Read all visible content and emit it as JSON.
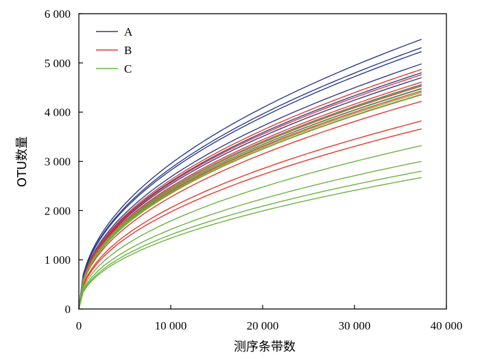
{
  "chart_data": {
    "type": "line",
    "xlabel": "测序条带数",
    "ylabel": "OTU数量",
    "xlim": [
      0,
      40000
    ],
    "ylim": [
      0,
      6000
    ],
    "x_ticks": [
      0,
      10000,
      20000,
      30000,
      40000
    ],
    "y_ticks": [
      0,
      1000,
      2000,
      3000,
      4000,
      5000,
      6000
    ],
    "x_tick_labels": [
      "0",
      "10 000",
      "20 000",
      "30 000",
      "40 000"
    ],
    "y_tick_labels": [
      "0",
      "1 000",
      "2 000",
      "3 000",
      "4 000",
      "5 000",
      "6 000"
    ],
    "legend": {
      "position": "top-left",
      "entries": [
        "A",
        "B",
        "C"
      ]
    },
    "group_colors": {
      "A": "#2b3a8c",
      "B": "#e8352a",
      "C": "#6ab23e"
    },
    "grid": false,
    "x_end": 37300,
    "series": [
      {
        "group": "A",
        "end_value": 5480
      },
      {
        "group": "A",
        "end_value": 5310
      },
      {
        "group": "A",
        "end_value": 5230
      },
      {
        "group": "A",
        "end_value": 4980
      },
      {
        "group": "A",
        "end_value": 4800
      },
      {
        "group": "A",
        "end_value": 4700
      },
      {
        "group": "A",
        "end_value": 4560
      },
      {
        "group": "A",
        "end_value": 4480
      },
      {
        "group": "B",
        "end_value": 4870
      },
      {
        "group": "B",
        "end_value": 4760
      },
      {
        "group": "B",
        "end_value": 4610
      },
      {
        "group": "B",
        "end_value": 4530
      },
      {
        "group": "B",
        "end_value": 4430
      },
      {
        "group": "B",
        "end_value": 4360
      },
      {
        "group": "B",
        "end_value": 4220
      },
      {
        "group": "B",
        "end_value": 3820
      },
      {
        "group": "B",
        "end_value": 3660
      },
      {
        "group": "C",
        "end_value": 4550
      },
      {
        "group": "C",
        "end_value": 4470
      },
      {
        "group": "C",
        "end_value": 4400
      },
      {
        "group": "C",
        "end_value": 4350
      },
      {
        "group": "C",
        "end_value": 3320
      },
      {
        "group": "C",
        "end_value": 3000
      },
      {
        "group": "C",
        "end_value": 2800
      },
      {
        "group": "C",
        "end_value": 2670
      }
    ]
  }
}
